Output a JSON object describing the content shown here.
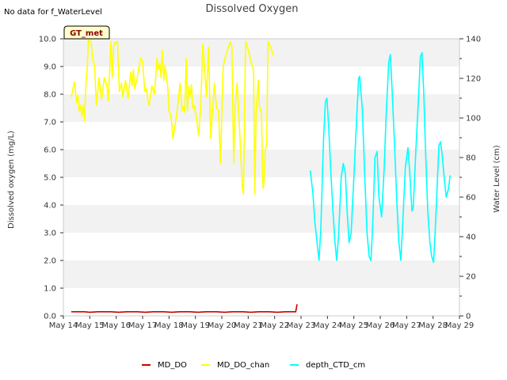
{
  "no_data_note": "No data for f_WaterLevel",
  "site_badge": "GT_met",
  "colors": {
    "MD_DO": "#cc0000",
    "MD_DO_chan": "#ffff00",
    "depth_CTD_cm": "#00ffff",
    "band": "#f2f2f2",
    "badge_bg": "#ffffcc"
  },
  "chart_data": {
    "type": "line",
    "title": "Dissolved Oxygen",
    "ylabel": "Dissolved oxygen (mg/L)",
    "y2label": "Water Level (cm)",
    "xlim": [
      14,
      29
    ],
    "ylim": [
      0,
      10
    ],
    "y2lim": [
      0,
      140
    ],
    "x_tick_labels": [
      "May 14",
      "May 15",
      "May 16",
      "May 17",
      "May 18",
      "May 19",
      "May 20",
      "May 21",
      "May 22",
      "May 23",
      "May 24",
      "May 25",
      "May 26",
      "May 27",
      "May 28",
      "May 29"
    ],
    "y_tick_labels": [
      "0.0",
      "1.0",
      "2.0",
      "3.0",
      "4.0",
      "5.0",
      "6.0",
      "7.0",
      "8.0",
      "9.0",
      "10.0"
    ],
    "y2_tick_labels": [
      "0",
      "20",
      "40",
      "60",
      "80",
      "100",
      "120",
      "140"
    ],
    "grid": "horizontal bands",
    "legend": "bottom",
    "series": [
      {
        "name": "MD_DO",
        "axis": "left",
        "points": [
          [
            14.3,
            0.15
          ],
          [
            14.8,
            0.15
          ],
          [
            15.0,
            0.13
          ],
          [
            15.3,
            0.15
          ],
          [
            15.8,
            0.15
          ],
          [
            16.1,
            0.13
          ],
          [
            16.4,
            0.15
          ],
          [
            16.8,
            0.15
          ],
          [
            17.1,
            0.13
          ],
          [
            17.4,
            0.15
          ],
          [
            17.8,
            0.15
          ],
          [
            18.1,
            0.13
          ],
          [
            18.4,
            0.15
          ],
          [
            18.8,
            0.15
          ],
          [
            19.1,
            0.13
          ],
          [
            19.4,
            0.15
          ],
          [
            19.8,
            0.15
          ],
          [
            20.1,
            0.13
          ],
          [
            20.4,
            0.15
          ],
          [
            20.8,
            0.15
          ],
          [
            21.1,
            0.13
          ],
          [
            21.4,
            0.15
          ],
          [
            21.8,
            0.15
          ],
          [
            22.1,
            0.13
          ],
          [
            22.4,
            0.15
          ],
          [
            22.8,
            0.15
          ],
          [
            22.85,
            0.42
          ]
        ]
      },
      {
        "name": "MD_DO_chan",
        "axis": "left",
        "points": [
          [
            14.3,
            7.9
          ],
          [
            14.42,
            8.45
          ],
          [
            14.5,
            7.7
          ],
          [
            14.55,
            7.95
          ],
          [
            14.6,
            7.4
          ],
          [
            14.65,
            7.6
          ],
          [
            14.7,
            7.2
          ],
          [
            14.75,
            7.6
          ],
          [
            14.8,
            7.05
          ],
          [
            14.85,
            8.3
          ],
          [
            14.9,
            8.9
          ],
          [
            14.95,
            9.95
          ],
          [
            15.05,
            9.9
          ],
          [
            15.12,
            9.2
          ],
          [
            15.18,
            9.1
          ],
          [
            15.25,
            7.6
          ],
          [
            15.35,
            8.6
          ],
          [
            15.45,
            7.8
          ],
          [
            15.55,
            8.6
          ],
          [
            15.65,
            8.3
          ],
          [
            15.7,
            7.75
          ],
          [
            15.8,
            9.9
          ],
          [
            15.85,
            8.6
          ],
          [
            15.9,
            9.7
          ],
          [
            15.95,
            9.85
          ],
          [
            16.05,
            9.9
          ],
          [
            16.12,
            8.1
          ],
          [
            16.2,
            8.4
          ],
          [
            16.25,
            7.9
          ],
          [
            16.35,
            8.5
          ],
          [
            16.45,
            7.85
          ],
          [
            16.55,
            8.8
          ],
          [
            16.6,
            8.3
          ],
          [
            16.65,
            8.9
          ],
          [
            16.7,
            8.2
          ],
          [
            16.8,
            8.6
          ],
          [
            16.85,
            8.9
          ],
          [
            16.92,
            9.3
          ],
          [
            17.0,
            9.2
          ],
          [
            17.08,
            8.1
          ],
          [
            17.15,
            8.2
          ],
          [
            17.2,
            7.75
          ],
          [
            17.25,
            7.6
          ],
          [
            17.35,
            8.3
          ],
          [
            17.45,
            8.0
          ],
          [
            17.55,
            9.3
          ],
          [
            17.6,
            8.9
          ],
          [
            17.65,
            9.1
          ],
          [
            17.7,
            8.6
          ],
          [
            17.75,
            9.6
          ],
          [
            17.8,
            8.5
          ],
          [
            17.85,
            9.05
          ],
          [
            17.9,
            8.6
          ],
          [
            17.95,
            8.3
          ],
          [
            18.0,
            7.4
          ],
          [
            18.05,
            7.3
          ],
          [
            18.1,
            7.0
          ],
          [
            18.15,
            6.4
          ],
          [
            18.2,
            6.7
          ],
          [
            18.3,
            7.3
          ],
          [
            18.42,
            8.4
          ],
          [
            18.5,
            7.4
          ],
          [
            18.55,
            7.55
          ],
          [
            18.6,
            7.35
          ],
          [
            18.65,
            9.3
          ],
          [
            18.7,
            7.4
          ],
          [
            18.75,
            8.3
          ],
          [
            18.8,
            7.9
          ],
          [
            18.85,
            8.35
          ],
          [
            18.9,
            7.5
          ],
          [
            18.95,
            7.6
          ],
          [
            19.05,
            7.1
          ],
          [
            19.12,
            6.5
          ],
          [
            19.2,
            7.5
          ],
          [
            19.28,
            9.8
          ],
          [
            19.35,
            8.9
          ],
          [
            19.42,
            7.9
          ],
          [
            19.5,
            9.7
          ],
          [
            19.58,
            6.4
          ],
          [
            19.63,
            7.2
          ],
          [
            19.72,
            8.4
          ],
          [
            19.8,
            7.5
          ],
          [
            19.88,
            7.4
          ],
          [
            19.95,
            5.5
          ],
          [
            20.05,
            9.0
          ],
          [
            20.15,
            9.4
          ],
          [
            20.25,
            9.7
          ],
          [
            20.32,
            9.9
          ],
          [
            20.38,
            9.7
          ],
          [
            20.45,
            5.5
          ],
          [
            20.5,
            7.5
          ],
          [
            20.58,
            8.4
          ],
          [
            20.62,
            7.7
          ],
          [
            20.7,
            6.2
          ],
          [
            20.78,
            4.6
          ],
          [
            20.82,
            4.4
          ],
          [
            20.9,
            9.9
          ],
          [
            20.95,
            9.8
          ],
          [
            21.0,
            9.6
          ],
          [
            21.1,
            9.2
          ],
          [
            21.2,
            8.9
          ],
          [
            21.25,
            4.4
          ],
          [
            21.3,
            7.3
          ],
          [
            21.38,
            8.5
          ],
          [
            21.42,
            7.6
          ],
          [
            21.5,
            7.3
          ],
          [
            21.56,
            4.6
          ],
          [
            21.6,
            4.8
          ],
          [
            21.65,
            6.0
          ],
          [
            21.7,
            6.2
          ],
          [
            21.75,
            9.9
          ],
          [
            21.85,
            9.7
          ],
          [
            21.95,
            9.4
          ]
        ]
      },
      {
        "name": "depth_CTD_cm",
        "axis": "right",
        "points": [
          [
            23.35,
            73.5
          ],
          [
            23.45,
            62
          ],
          [
            23.52,
            48
          ],
          [
            23.6,
            38
          ],
          [
            23.68,
            28
          ],
          [
            23.75,
            44
          ],
          [
            23.85,
            88
          ],
          [
            23.92,
            108
          ],
          [
            23.98,
            110
          ],
          [
            24.05,
            95
          ],
          [
            24.12,
            75
          ],
          [
            24.2,
            55
          ],
          [
            24.28,
            38
          ],
          [
            24.35,
            28
          ],
          [
            24.42,
            40
          ],
          [
            24.52,
            70
          ],
          [
            24.6,
            77
          ],
          [
            24.68,
            72
          ],
          [
            24.75,
            52
          ],
          [
            24.82,
            37
          ],
          [
            24.9,
            42
          ],
          [
            25.0,
            70
          ],
          [
            25.1,
            98
          ],
          [
            25.18,
            120
          ],
          [
            25.22,
            121
          ],
          [
            25.32,
            105
          ],
          [
            25.42,
            68
          ],
          [
            25.5,
            42
          ],
          [
            25.58,
            30
          ],
          [
            25.65,
            28
          ],
          [
            25.72,
            48
          ],
          [
            25.8,
            80
          ],
          [
            25.88,
            83
          ],
          [
            25.95,
            60
          ],
          [
            26.05,
            50
          ],
          [
            26.15,
            75
          ],
          [
            26.22,
            100
          ],
          [
            26.32,
            128
          ],
          [
            26.38,
            132
          ],
          [
            26.45,
            114
          ],
          [
            26.55,
            84
          ],
          [
            26.62,
            60
          ],
          [
            26.7,
            38
          ],
          [
            26.78,
            28
          ],
          [
            26.85,
            46
          ],
          [
            26.95,
            75
          ],
          [
            27.05,
            85
          ],
          [
            27.12,
            72
          ],
          [
            27.2,
            53
          ],
          [
            27.25,
            55
          ],
          [
            27.35,
            84
          ],
          [
            27.45,
            110
          ],
          [
            27.52,
            131
          ],
          [
            27.58,
            133
          ],
          [
            27.65,
            112
          ],
          [
            27.72,
            82
          ],
          [
            27.8,
            53
          ],
          [
            27.88,
            37
          ],
          [
            27.95,
            30
          ],
          [
            28.02,
            27
          ],
          [
            28.08,
            42
          ],
          [
            28.15,
            64
          ],
          [
            28.22,
            86
          ],
          [
            28.28,
            88
          ],
          [
            28.35,
            81
          ],
          [
            28.42,
            70
          ],
          [
            28.5,
            60
          ],
          [
            28.58,
            64
          ],
          [
            28.65,
            71
          ]
        ]
      }
    ]
  }
}
